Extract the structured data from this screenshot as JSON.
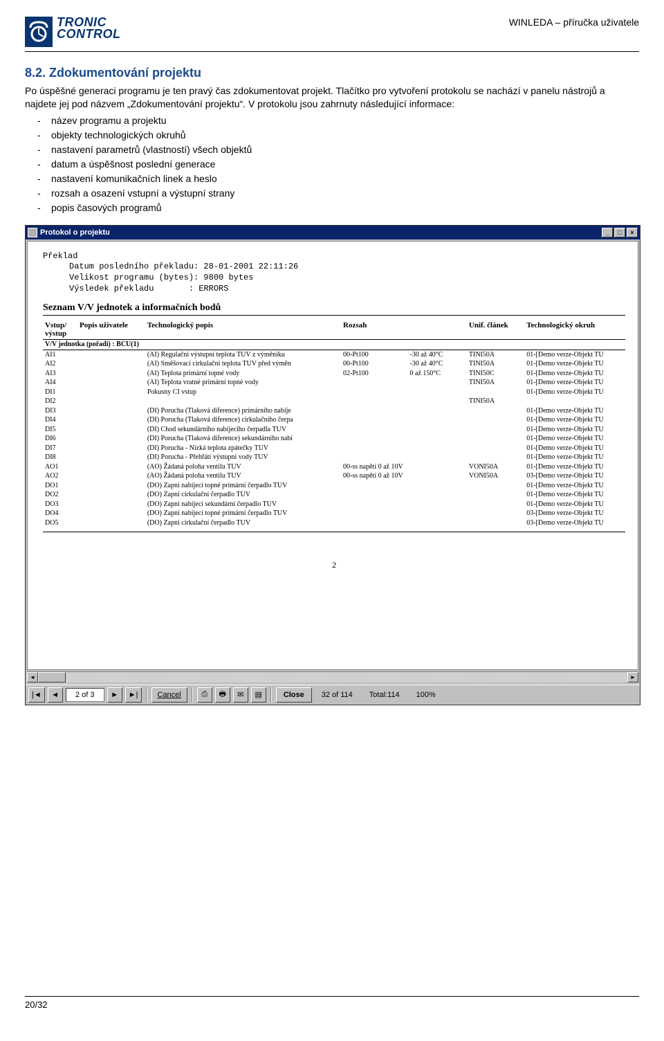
{
  "header": {
    "logo_top": "TRONIC",
    "logo_bottom": "CONTROL",
    "doc_title": "WINLEDA – příručka uživatele"
  },
  "section": {
    "number_title": "8.2. Zdokumentování projektu",
    "para": "Po úspěšné generaci programu je ten pravý čas zdokumentovat projekt. Tlačítko pro vytvoření protokolu se nachází v panelu nástrojů a najdete jej pod názvem „Zdokumentování projektu“. V protokolu jsou zahrnuty následující informace:",
    "bullets": [
      "název programu a projektu",
      "objekty technologických okruhů",
      "nastavení parametrů (vlastností) všech objektů",
      "datum a úspěšnost poslední generace",
      "nastavení komunikačních linek a heslo",
      "rozsah a osazení vstupní a výstupní strany",
      "popis časových programů"
    ]
  },
  "window": {
    "title": "Protokol o projektu",
    "btn_min": "_",
    "btn_max": "□",
    "btn_close": "×",
    "mono": {
      "h": "Překlad",
      "l1": "Datum posledního překladu: 28-01-2001 22:11:26",
      "l2": "Velikost programu (bytes): 9800 bytes",
      "l3_label": "Výsledek překladu",
      "l3_colon": ":",
      "l3_val": "ERRORS"
    },
    "sect_heading": "Seznam V/V jednotek a informačních  bodů",
    "columns": [
      "Vstup/\nvýstup",
      "Popis uživatele",
      "Technologický popis",
      "Rozsah",
      "",
      "Unif. článek",
      "Technologický okruh"
    ],
    "group_row": "V/V jednotka (pořadí) : BCU(1)",
    "rows": [
      [
        "AI1",
        "",
        "(AI) Regulační výstupní teplota TUV z výměníku",
        "00-Pt100",
        "-30 až 40°C",
        "TINI50A",
        "01-[Demo verze-Objekt TU"
      ],
      [
        "AI2",
        "",
        "(AI) Směšovací cirkulační teplota TUV před výměn",
        "00-Pt100",
        "-30 až 40°C",
        "TINI50A",
        "01-[Demo verze-Objekt TU"
      ],
      [
        "AI3",
        "",
        "(AI) Teplota primární topné vody",
        "02-Pt100",
        "0 až 150°C",
        "TINI50C",
        "01-[Demo verze-Objekt TU"
      ],
      [
        "AI4",
        "",
        "(AI) Teplota vratné primární topné vody",
        "",
        "",
        "TINI50A",
        "01-[Demo verze-Objekt TU"
      ],
      [
        "DI1",
        "",
        "Pokusny CI vstup",
        "",
        "",
        "",
        "01-[Demo verze-Objekt TU"
      ],
      [
        "DI2",
        "",
        "",
        "",
        "",
        "TINI50A",
        ""
      ],
      [
        "DI3",
        "",
        "(DI) Porucha (Tlaková diference) primárního nabíje",
        "",
        "",
        "",
        "01-[Demo verze-Objekt TU"
      ],
      [
        "DI4",
        "",
        "(DI) Porucha (Tlaková diference) cirkulačního čerpa",
        "",
        "",
        "",
        "01-[Demo verze-Objekt TU"
      ],
      [
        "DI5",
        "",
        "(DI) Chod sekundárního nabíjecího čerpadla TUV",
        "",
        "",
        "",
        "01-[Demo verze-Objekt TU"
      ],
      [
        "DI6",
        "",
        "(DI) Porucha (Tlaková diference) sekundárního nabí",
        "",
        "",
        "",
        "01-[Demo verze-Objekt TU"
      ],
      [
        "DI7",
        "",
        "(DI) Porucha - Nízká teplota zpátečky TUV",
        "",
        "",
        "",
        "01-[Demo verze-Objekt TU"
      ],
      [
        "DI8",
        "",
        "(DI) Porucha - Přehřátí výstupní vody TUV",
        "",
        "",
        "",
        "01-[Demo verze-Objekt TU"
      ],
      [
        "AO1",
        "",
        "(AO) Žádaná poloha ventilu TUV",
        "00-ss napětí 0 až 10V",
        "",
        "VONI50A",
        "01-[Demo verze-Objekt TU"
      ],
      [
        "AO2",
        "",
        "(AO) Žádaná poloha ventilu TUV",
        "00-ss napětí 0 až 10V",
        "",
        "VONI50A",
        "03-[Demo verze-Objekt TU"
      ],
      [
        "DO1",
        "",
        "(DO) Zapni nabíjecí topné primární čerpadlo TUV",
        "",
        "",
        "",
        "01-[Demo verze-Objekt TU"
      ],
      [
        "DO2",
        "",
        "(DO) Zapni cirkulační čerpadlo TUV",
        "",
        "",
        "",
        "01-[Demo verze-Objekt TU"
      ],
      [
        "DO3",
        "",
        "(DO) Zapni nabíjecí sekundární čerpadlo TUV",
        "",
        "",
        "",
        "01-[Demo verze-Objekt TU"
      ],
      [
        "DO4",
        "",
        "(DO) Zapni nabíjecí topné primární čerpadlo TUV",
        "",
        "",
        "",
        "03-[Demo verze-Objekt TU"
      ],
      [
        "DO5",
        "",
        "(DO) Zapni cirkulační čerpadlo TUV",
        "",
        "",
        "",
        "03-[Demo verze-Objekt TU"
      ]
    ],
    "page_number": "2"
  },
  "toolbar": {
    "nav_first": "⏮",
    "nav_prev": "◀",
    "page_field": "2 of 3",
    "nav_next": "▶",
    "nav_last": "⏭",
    "cancel": "Cancel",
    "close": "Close",
    "status_records": "32 of 114",
    "status_total": "Total:114",
    "status_zoom": "100%"
  },
  "footer": {
    "page": "20/32"
  },
  "colors": {
    "brand": "#0a3570",
    "heading": "#1a4a8a",
    "winbar": "#0a246a",
    "gui_bg": "#c0c0c0"
  }
}
